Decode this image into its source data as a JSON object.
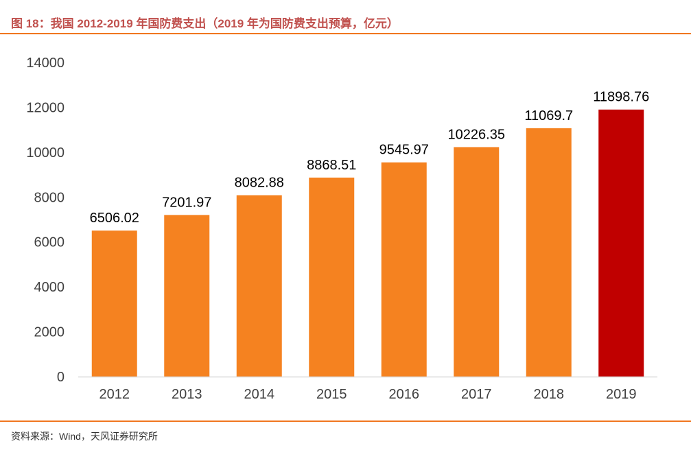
{
  "figure": {
    "title": "图 18：我国 2012-2019 年国防费支出（2019 年为国防费支出预算，亿元）",
    "source": "资料来源：Wind，天风证券研究所"
  },
  "colors": {
    "accent": "#f0761f",
    "bar": "#f58220",
    "highlight": "#c00000",
    "title": "#c0504d"
  },
  "chart_data": {
    "type": "bar",
    "title": "",
    "xlabel": "",
    "ylabel": "",
    "categories": [
      "2012",
      "2013",
      "2014",
      "2015",
      "2016",
      "2017",
      "2018",
      "2019"
    ],
    "values": [
      6506.02,
      7201.97,
      8082.88,
      8868.51,
      9545.97,
      10226.35,
      11069.7,
      11898.76
    ],
    "data_labels": [
      "6506.02",
      "7201.97",
      "8082.88",
      "8868.51",
      "9545.97",
      "10226.35",
      "11069.7",
      "11898.76"
    ],
    "highlight_index": 7,
    "ylim": [
      0,
      14000
    ],
    "yticks": [
      0,
      2000,
      4000,
      6000,
      8000,
      10000,
      12000,
      14000
    ],
    "grid": false,
    "legend": "none"
  }
}
